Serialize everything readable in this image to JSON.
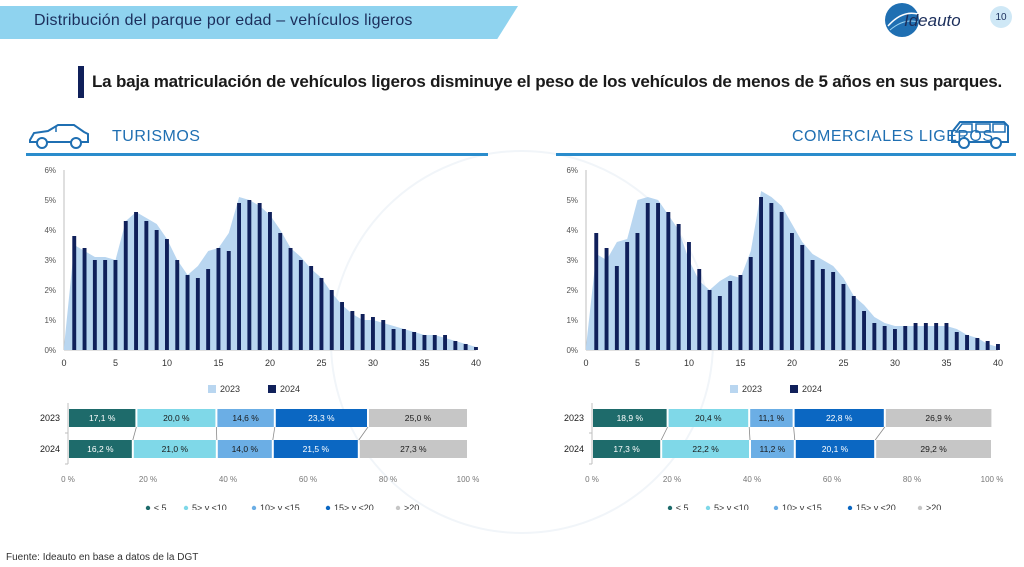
{
  "header": {
    "title": "Distribución del parque por edad – vehículos ligeros",
    "page_number": "10"
  },
  "logo": {
    "text": "Ideauto"
  },
  "headline": "La baja matriculación de vehículos ligeros disminuye el peso de los vehículos de menos de 5 años en sus parques.",
  "colors": {
    "area2023": "#b9d6f0",
    "bar2024": "#10205a",
    "s1": "#1e6b6b",
    "s2": "#7fd8e8",
    "s3": "#6baee5",
    "s4": "#0b67c2",
    "s5": "#c6c6c6"
  },
  "source": "Fuente: Ideauto en base a datos de la DGT",
  "chart_data": [
    {
      "title": "TURISMOS",
      "type": "area",
      "icon": "car-icon",
      "ylim": [
        0,
        6
      ],
      "yticks": [
        "0%",
        "1%",
        "2%",
        "3%",
        "4%",
        "5%",
        "6%"
      ],
      "xlim": [
        0,
        40
      ],
      "xticks": [
        "0",
        "5",
        "10",
        "15",
        "20",
        "25",
        "30",
        "35",
        "40"
      ],
      "legend": [
        "2023",
        "2024"
      ],
      "series": [
        {
          "name": "2023",
          "type": "area",
          "x": [
            0,
            1,
            2,
            3,
            4,
            5,
            6,
            7,
            8,
            9,
            10,
            11,
            12,
            13,
            14,
            15,
            16,
            17,
            18,
            19,
            20,
            21,
            22,
            23,
            24,
            25,
            26,
            27,
            28,
            29,
            30,
            31,
            32,
            33,
            34,
            35,
            36,
            37,
            38,
            39,
            40
          ],
          "values": [
            0.1,
            3.5,
            3.3,
            3.1,
            3.1,
            3.0,
            4.3,
            4.6,
            4.4,
            4.2,
            3.7,
            3.0,
            2.5,
            2.8,
            3.3,
            3.4,
            3.9,
            5.1,
            5.0,
            4.8,
            4.5,
            4.0,
            3.4,
            3.1,
            2.7,
            2.4,
            1.9,
            1.5,
            1.2,
            1.0,
            1.0,
            0.9,
            0.8,
            0.7,
            0.6,
            0.5,
            0.5,
            0.4,
            0.3,
            0.2,
            0.1
          ]
        },
        {
          "name": "2024",
          "type": "bar",
          "x": [
            1,
            2,
            3,
            4,
            5,
            6,
            7,
            8,
            9,
            10,
            11,
            12,
            13,
            14,
            15,
            16,
            17,
            18,
            19,
            20,
            21,
            22,
            23,
            24,
            25,
            26,
            27,
            28,
            29,
            30,
            31,
            32,
            33,
            34,
            35,
            36,
            37,
            38,
            39,
            40
          ],
          "values": [
            3.8,
            3.4,
            3.0,
            3.0,
            3.0,
            4.3,
            4.6,
            4.3,
            4.0,
            3.7,
            3.0,
            2.5,
            2.4,
            2.7,
            3.4,
            3.3,
            4.9,
            5.0,
            4.9,
            4.6,
            3.9,
            3.4,
            3.0,
            2.8,
            2.4,
            2.0,
            1.6,
            1.3,
            1.2,
            1.1,
            1.0,
            0.7,
            0.7,
            0.6,
            0.5,
            0.5,
            0.5,
            0.3,
            0.2,
            0.1
          ]
        }
      ],
      "stacked": {
        "rows": [
          "2023",
          "2024"
        ],
        "xticks": [
          "0 %",
          "20 %",
          "40 %",
          "60 %",
          "80 %",
          "100 %"
        ],
        "series": [
          {
            "name": "≤ 5",
            "values": [
              17.1,
              16.2
            ],
            "labels": [
              "17,1 %",
              "16,2 %"
            ]
          },
          {
            "name": "5> y ≤10",
            "values": [
              20.0,
              21.0
            ],
            "labels": [
              "20,0 %",
              "21,0 %"
            ]
          },
          {
            "name": "10> y ≤15",
            "values": [
              14.6,
              14.0
            ],
            "labels": [
              "14,6 %",
              "14,0 %"
            ]
          },
          {
            "name": "15> y ≤20",
            "values": [
              23.3,
              21.5
            ],
            "labels": [
              "23,3 %",
              "21,5 %"
            ]
          },
          {
            "name": ">20",
            "values": [
              25.0,
              27.3
            ],
            "labels": [
              "25,0 %",
              "27,3 %"
            ]
          }
        ]
      }
    },
    {
      "title": "COMERCIALES LIGEROS",
      "type": "area",
      "icon": "van-icon",
      "ylim": [
        0,
        6
      ],
      "yticks": [
        "0%",
        "1%",
        "2%",
        "3%",
        "4%",
        "5%",
        "6%"
      ],
      "xlim": [
        0,
        40
      ],
      "xticks": [
        "0",
        "5",
        "10",
        "15",
        "20",
        "25",
        "30",
        "35",
        "40"
      ],
      "legend": [
        "2023",
        "2024"
      ],
      "series": [
        {
          "name": "2023",
          "type": "area",
          "x": [
            0,
            1,
            2,
            3,
            4,
            5,
            6,
            7,
            8,
            9,
            10,
            11,
            12,
            13,
            14,
            15,
            16,
            17,
            18,
            19,
            20,
            21,
            22,
            23,
            24,
            25,
            26,
            27,
            28,
            29,
            30,
            31,
            32,
            33,
            34,
            35,
            36,
            37,
            38,
            39,
            40
          ],
          "values": [
            0.1,
            3.2,
            3.0,
            3.6,
            3.7,
            5.0,
            5.1,
            5.0,
            4.5,
            4.0,
            3.0,
            2.3,
            2.0,
            2.3,
            2.5,
            2.4,
            3.3,
            5.3,
            5.1,
            4.8,
            4.2,
            3.6,
            3.2,
            3.0,
            2.8,
            2.4,
            1.8,
            1.5,
            1.1,
            0.9,
            0.8,
            0.8,
            0.8,
            0.8,
            0.8,
            0.8,
            0.7,
            0.5,
            0.4,
            0.2,
            0.1
          ]
        },
        {
          "name": "2024",
          "type": "bar",
          "x": [
            1,
            2,
            3,
            4,
            5,
            6,
            7,
            8,
            9,
            10,
            11,
            12,
            13,
            14,
            15,
            16,
            17,
            18,
            19,
            20,
            21,
            22,
            23,
            24,
            25,
            26,
            27,
            28,
            29,
            30,
            31,
            32,
            33,
            34,
            35,
            36,
            37,
            38,
            39,
            40
          ],
          "values": [
            3.9,
            3.4,
            2.8,
            3.6,
            3.9,
            4.9,
            4.9,
            4.6,
            4.2,
            3.6,
            2.7,
            2.0,
            1.8,
            2.3,
            2.5,
            3.1,
            5.1,
            4.9,
            4.6,
            3.9,
            3.5,
            3.0,
            2.7,
            2.6,
            2.2,
            1.8,
            1.3,
            0.9,
            0.8,
            0.7,
            0.8,
            0.9,
            0.9,
            0.9,
            0.9,
            0.6,
            0.5,
            0.4,
            0.3,
            0.2
          ]
        }
      ],
      "stacked": {
        "rows": [
          "2023",
          "2024"
        ],
        "xticks": [
          "0 %",
          "20 %",
          "40 %",
          "60 %",
          "80 %",
          "100 %"
        ],
        "series": [
          {
            "name": "≤ 5",
            "values": [
              18.9,
              17.3
            ],
            "labels": [
              "18,9 %",
              "17,3 %"
            ]
          },
          {
            "name": "5> y ≤10",
            "values": [
              20.4,
              22.2
            ],
            "labels": [
              "20,4 %",
              "22,2 %"
            ]
          },
          {
            "name": "10> y ≤15",
            "values": [
              11.1,
              11.2
            ],
            "labels": [
              "11,1 %",
              "11,2 %"
            ]
          },
          {
            "name": "15> y ≤20",
            "values": [
              22.8,
              20.1
            ],
            "labels": [
              "22,8 %",
              "20,1 %"
            ]
          },
          {
            "name": ">20",
            "values": [
              26.9,
              29.2
            ],
            "labels": [
              "26,9 %",
              "29,2 %"
            ]
          }
        ]
      }
    }
  ]
}
